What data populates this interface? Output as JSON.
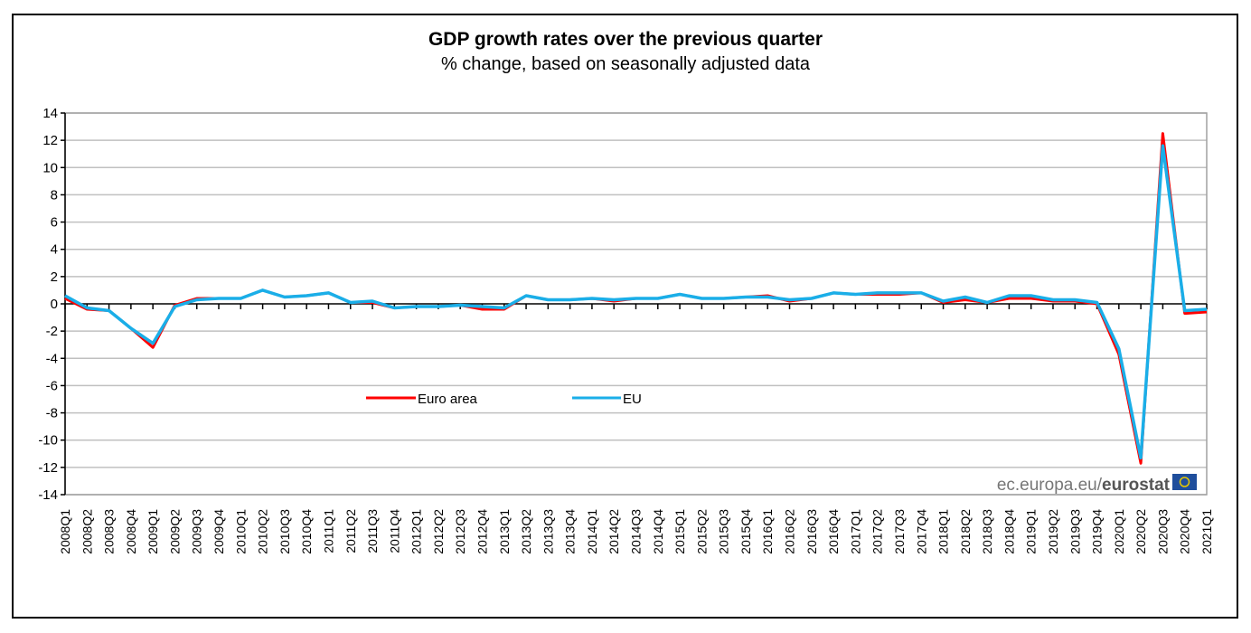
{
  "chart_data": {
    "type": "line",
    "title": "GDP growth rates over the previous quarter",
    "subtitle": "% change, based on seasonally adjusted data",
    "xlabel": "",
    "ylabel": "",
    "ylim": [
      -14,
      14
    ],
    "yticks": [
      14,
      12,
      10,
      8,
      6,
      4,
      2,
      0,
      -2,
      -4,
      -6,
      -8,
      -10,
      -12,
      -14
    ],
    "grid": true,
    "legend_position": "center-left",
    "categories": [
      "2008Q1",
      "2008Q2",
      "2008Q3",
      "2008Q4",
      "2009Q1",
      "2009Q2",
      "2009Q3",
      "2009Q4",
      "2010Q1",
      "2010Q2",
      "2010Q3",
      "2010Q4",
      "2011Q1",
      "2011Q2",
      "2011Q3",
      "2011Q4",
      "2012Q1",
      "2012Q2",
      "2012Q3",
      "2012Q4",
      "2013Q1",
      "2013Q2",
      "2013Q3",
      "2013Q4",
      "2014Q1",
      "2014Q2",
      "2014Q3",
      "2014Q4",
      "2015Q1",
      "2015Q2",
      "2015Q3",
      "2015Q4",
      "2016Q1",
      "2016Q2",
      "2016Q3",
      "2016Q4",
      "2017Q1",
      "2017Q2",
      "2017Q3",
      "2017Q4",
      "2018Q1",
      "2018Q2",
      "2018Q3",
      "2018Q4",
      "2019Q1",
      "2019Q2",
      "2019Q3",
      "2019Q4",
      "2020Q1",
      "2020Q2",
      "2020Q3",
      "2020Q4",
      "2021Q1"
    ],
    "series": [
      {
        "name": "Euro area",
        "color": "#ff0000",
        "values": [
          0.4,
          -0.4,
          -0.5,
          -1.8,
          -3.2,
          -0.1,
          0.4,
          0.4,
          0.4,
          1.0,
          0.5,
          0.6,
          0.8,
          0.1,
          0.1,
          -0.3,
          -0.2,
          -0.2,
          -0.1,
          -0.4,
          -0.4,
          0.6,
          0.3,
          0.3,
          0.4,
          0.2,
          0.4,
          0.4,
          0.7,
          0.4,
          0.4,
          0.5,
          0.6,
          0.2,
          0.4,
          0.8,
          0.7,
          0.7,
          0.7,
          0.8,
          0.1,
          0.3,
          0.1,
          0.4,
          0.4,
          0.2,
          0.2,
          0.0,
          -3.7,
          -11.7,
          12.5,
          -0.7,
          -0.6
        ]
      },
      {
        "name": "EU",
        "color": "#1aaee8",
        "values": [
          0.6,
          -0.3,
          -0.5,
          -1.8,
          -2.9,
          -0.2,
          0.3,
          0.4,
          0.4,
          1.0,
          0.5,
          0.6,
          0.8,
          0.1,
          0.2,
          -0.3,
          -0.2,
          -0.2,
          -0.1,
          -0.2,
          -0.3,
          0.6,
          0.3,
          0.3,
          0.4,
          0.3,
          0.4,
          0.4,
          0.7,
          0.4,
          0.4,
          0.5,
          0.5,
          0.3,
          0.4,
          0.8,
          0.7,
          0.8,
          0.8,
          0.8,
          0.2,
          0.5,
          0.1,
          0.6,
          0.6,
          0.3,
          0.3,
          0.1,
          -3.3,
          -11.3,
          11.6,
          -0.5,
          -0.4
        ]
      }
    ]
  },
  "source": {
    "prefix": "ec.europa.eu/",
    "brand": "eurostat",
    "flag_color": "#1f4e9c",
    "star_color": "#e8c800"
  }
}
